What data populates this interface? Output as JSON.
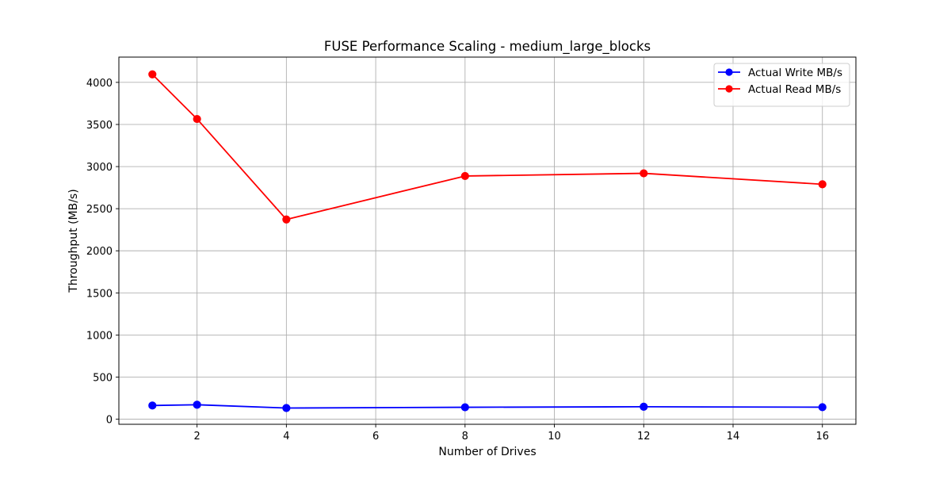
{
  "chart_data": {
    "type": "line",
    "title": "FUSE Performance Scaling - medium_large_blocks",
    "xlabel": "Number of Drives",
    "ylabel": "Throughput (MB/s)",
    "x": [
      1,
      2,
      4,
      8,
      12,
      16
    ],
    "xlim": [
      0.25,
      16.75
    ],
    "ylim": [
      -60,
      4300
    ],
    "xticks": [
      2,
      4,
      6,
      8,
      10,
      12,
      14,
      16
    ],
    "yticks": [
      0,
      500,
      1000,
      1500,
      2000,
      2500,
      3000,
      3500,
      4000
    ],
    "grid": true,
    "legend_position": "top-right",
    "series": [
      {
        "name": "Actual Write MB/s",
        "color": "#0000ff",
        "marker": "circle",
        "values": [
          163,
          172,
          133,
          142,
          148,
          143
        ]
      },
      {
        "name": "Actual Read MB/s",
        "color": "#ff0000",
        "marker": "circle",
        "values": [
          4095,
          3565,
          2372,
          2888,
          2920,
          2790
        ]
      }
    ]
  }
}
